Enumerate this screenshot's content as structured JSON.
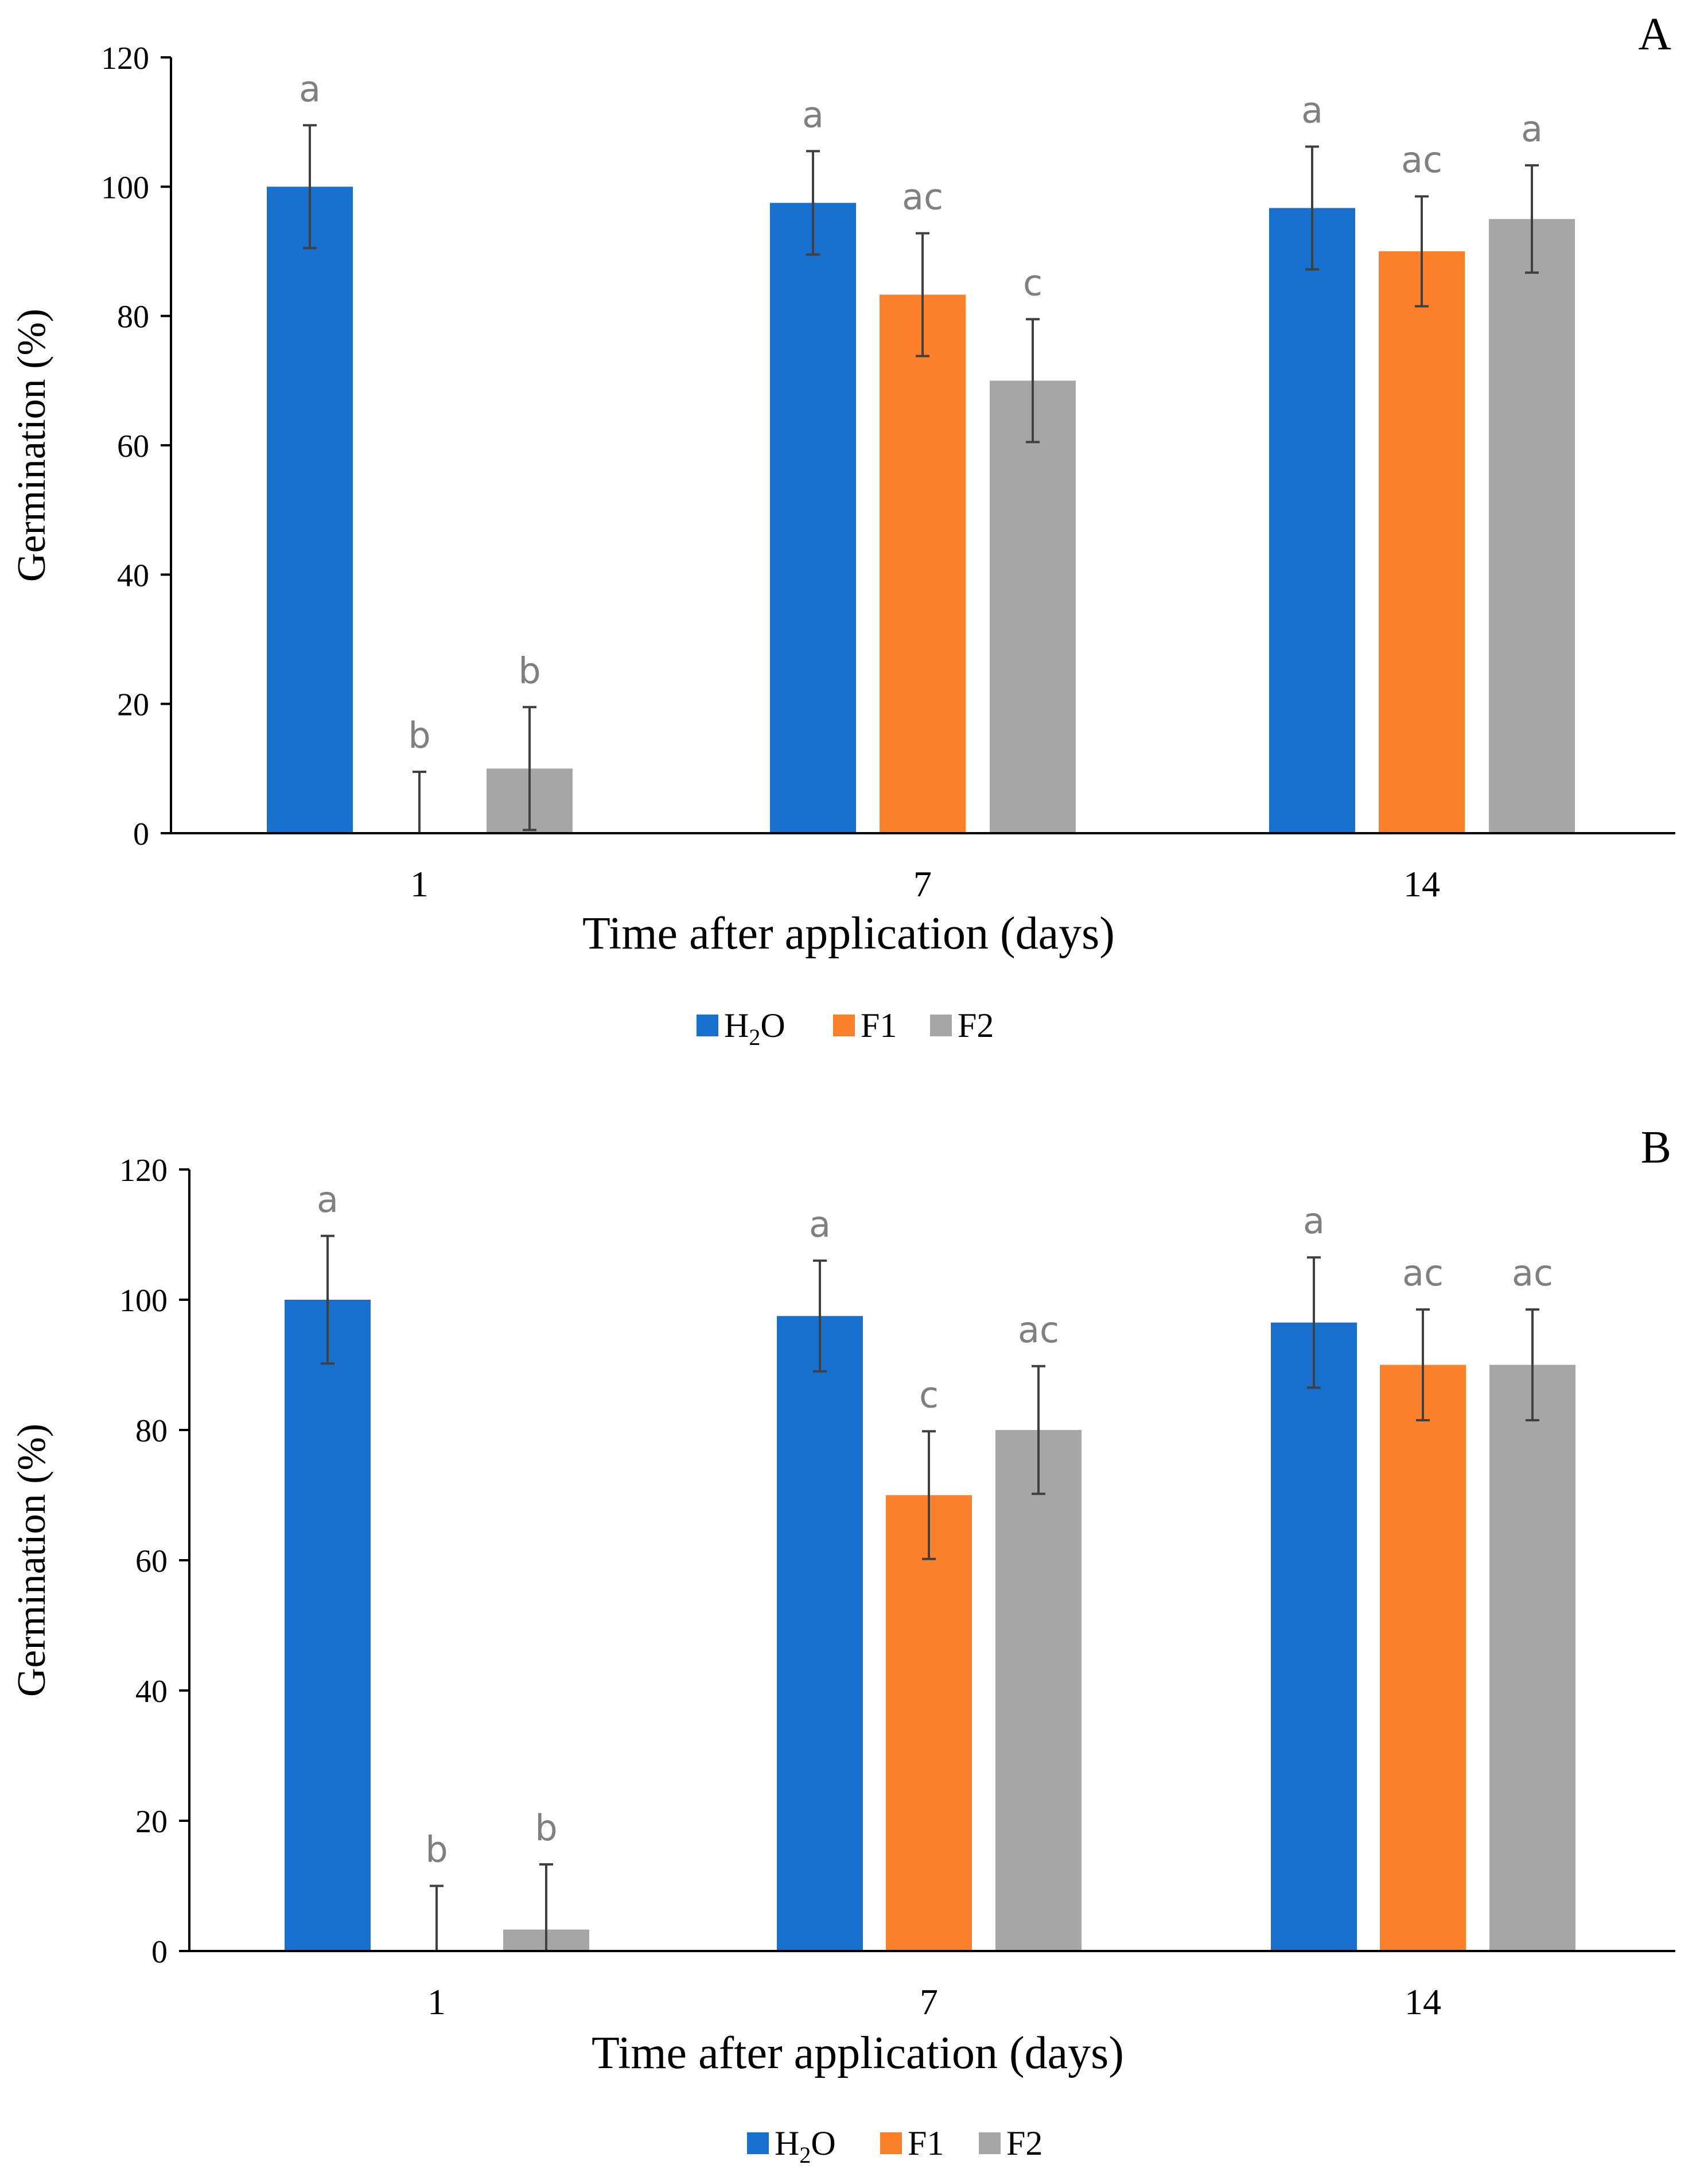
{
  "chart_data": [
    {
      "panel": "A",
      "type": "bar",
      "categories": [
        "1",
        "7",
        "14"
      ],
      "series": [
        {
          "name": "H2O",
          "color": "#1870CE",
          "values": [
            100,
            97.5,
            96.7
          ],
          "error": [
            9.5,
            8,
            9.5
          ],
          "letters": [
            "a",
            "a",
            "a"
          ]
        },
        {
          "name": "F1",
          "color": "#FC7F2A",
          "values": [
            0,
            83.3,
            90
          ],
          "error": [
            9.5,
            9.5,
            8.5
          ],
          "letters": [
            "b",
            "ac",
            "ac"
          ]
        },
        {
          "name": "F2",
          "color": "#A6A6A6",
          "values": [
            10,
            70,
            95
          ],
          "error": [
            9.5,
            9.5,
            8.3
          ],
          "letters": [
            "b",
            "c",
            "a"
          ]
        }
      ],
      "title": "",
      "xlabel": "Time after application (days)",
      "ylabel": "Germination (%)",
      "ylim": [
        0,
        120
      ],
      "yticks": [
        "0",
        "20",
        "40",
        "60",
        "80",
        "100",
        "120"
      ],
      "legend": "bottom-center"
    },
    {
      "panel": "B",
      "type": "bar",
      "categories": [
        "1",
        "7",
        "14"
      ],
      "series": [
        {
          "name": "H2O",
          "color": "#1870CE",
          "values": [
            100,
            97.5,
            96.5
          ],
          "error": [
            9.8,
            8.5,
            10
          ],
          "letters": [
            "a",
            "a",
            "a"
          ]
        },
        {
          "name": "F1",
          "color": "#FC7F2A",
          "values": [
            0,
            70,
            90
          ],
          "error": [
            10,
            9.8,
            8.5
          ],
          "letters": [
            "b",
            "c",
            "ac"
          ]
        },
        {
          "name": "F2",
          "color": "#A6A6A6",
          "values": [
            3.3,
            80,
            90
          ],
          "error": [
            10,
            9.8,
            8.5
          ],
          "letters": [
            "b",
            "ac",
            "ac"
          ]
        }
      ],
      "title": "",
      "xlabel": "Time after application (days)",
      "ylabel": "Germination (%)",
      "ylim": [
        0,
        120
      ],
      "yticks": [
        "0",
        "20",
        "40",
        "60",
        "80",
        "100",
        "120"
      ],
      "legend": "bottom-center"
    }
  ],
  "legend": {
    "h2o": {
      "base": "H",
      "sub": "2",
      "tail": "O"
    },
    "f1": "F1",
    "f2": "F2"
  }
}
